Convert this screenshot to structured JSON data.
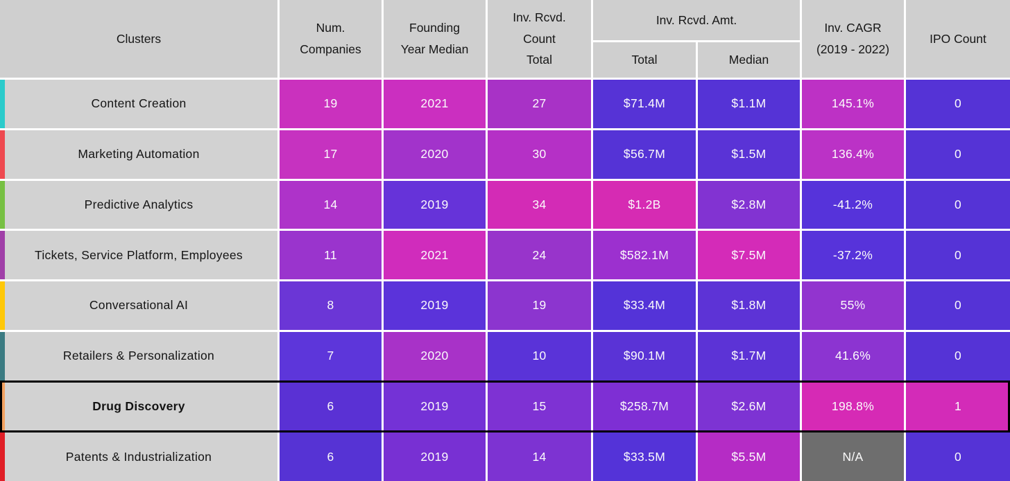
{
  "header": {
    "clusters": "Clusters",
    "num_companies": "Num.\nCompanies",
    "founding_year": "Founding\nYear Median",
    "inv_count": "Inv. Rcvd.\nCount\nTotal",
    "inv_amt_group": "Inv. Rcvd. Amt.",
    "inv_amt_total": "Total",
    "inv_amt_median": "Median",
    "inv_cagr": "Inv. CAGR\n(2019 - 2022)",
    "ipo_count": "IPO Count"
  },
  "colors": {
    "header_bg": "#cfcfcf",
    "cluster_cell_bg": "#d2d2d2",
    "grid_gap": "#ffffff",
    "highlight_border": "#000000",
    "na_cell_bg": "#6e6e6e",
    "heat_low": "#5533d6",
    "heat_high": "#d62bb5"
  },
  "chart_data": {
    "type": "table",
    "title": "",
    "columns": [
      "Clusters",
      "Num. Companies",
      "Founding Year Median",
      "Inv. Rcvd. Count Total",
      "Inv. Rcvd. Amt. Total",
      "Inv. Rcvd. Amt. Median",
      "Inv. CAGR (2019 - 2022)",
      "IPO Count"
    ],
    "rows": [
      {
        "cluster": "Content Creation",
        "stripe_color": "#2bcbcb",
        "highlighted": false,
        "values": [
          "19",
          "2021",
          "27",
          "$71.4M",
          "$1.1M",
          "145.1%",
          "0"
        ],
        "cell_colors": [
          "#ca31be",
          "#cb2fc0",
          "#a832c6",
          "#5633d6",
          "#5533d6",
          "#bd31c5",
          "#5533d6"
        ]
      },
      {
        "cluster": "Marketing Automation",
        "stripe_color": "#ee4950",
        "highlighted": false,
        "values": [
          "17",
          "2020",
          "30",
          "$56.7M",
          "$1.5M",
          "136.4%",
          "0"
        ],
        "cell_colors": [
          "#c632c0",
          "#a233cb",
          "#b530c6",
          "#5533d6",
          "#5a33d6",
          "#bb32c6",
          "#5533d6"
        ]
      },
      {
        "cluster": "Predictive Analytics",
        "stripe_color": "#77c043",
        "highlighted": false,
        "values": [
          "14",
          "2019",
          "34",
          "$1.2B",
          "$2.8M",
          "-41.2%",
          "0"
        ],
        "cell_colors": [
          "#ae33c9",
          "#6633d9",
          "#d32bb6",
          "#d62bb3",
          "#8233d2",
          "#5633da",
          "#5533d6"
        ]
      },
      {
        "cluster": "Tickets, Service Platform, Employees",
        "stripe_color": "#a03fa8",
        "highlighted": false,
        "values": [
          "11",
          "2021",
          "24",
          "$582.1M",
          "$7.5M",
          "-37.2%",
          "0"
        ],
        "cell_colors": [
          "#9a34cd",
          "#d02cbc",
          "#9834cb",
          "#9c30cf",
          "#d42bb8",
          "#5733da",
          "#5533d6"
        ]
      },
      {
        "cluster": "Conversational AI",
        "stripe_color": "#ffc808",
        "highlighted": false,
        "values": [
          "8",
          "2019",
          "19",
          "$33.4M",
          "$1.8M",
          "55%",
          "0"
        ],
        "cell_colors": [
          "#6b36d6",
          "#5b33da",
          "#8c35cf",
          "#5433d8",
          "#5d33d6",
          "#9234cf",
          "#5533d6"
        ]
      },
      {
        "cluster": "Retailers & Personalization",
        "stripe_color": "#3b7b82",
        "highlighted": false,
        "values": [
          "7",
          "2020",
          "10",
          "$90.1M",
          "$1.7M",
          "41.6%",
          "0"
        ],
        "cell_colors": [
          "#5d36da",
          "#a832c8",
          "#5a33d8",
          "#5a33d6",
          "#5c33d6",
          "#8c34d1",
          "#5533d6"
        ]
      },
      {
        "cluster": "Drug Discovery",
        "stripe_color": "#f2a261",
        "highlighted": true,
        "values": [
          "6",
          "2019",
          "15",
          "$258.7M",
          "$2.6M",
          "198.8%",
          "1"
        ],
        "cell_colors": [
          "#5a31d4",
          "#7432d6",
          "#7e32d3",
          "#7e2fd4",
          "#7d33d3",
          "#d62ab5",
          "#d32bb8"
        ]
      },
      {
        "cluster": "Patents & Industrialization",
        "stripe_color": "#e01e26",
        "highlighted": false,
        "values": [
          "6",
          "2019",
          "14",
          "$33.5M",
          "$5.5M",
          "N/A",
          "0"
        ],
        "cell_colors": [
          "#5633d4",
          "#7830d3",
          "#7d33d2",
          "#5433d8",
          "#b52cc5",
          "#6e6e6e",
          "#5533d6"
        ]
      }
    ]
  }
}
